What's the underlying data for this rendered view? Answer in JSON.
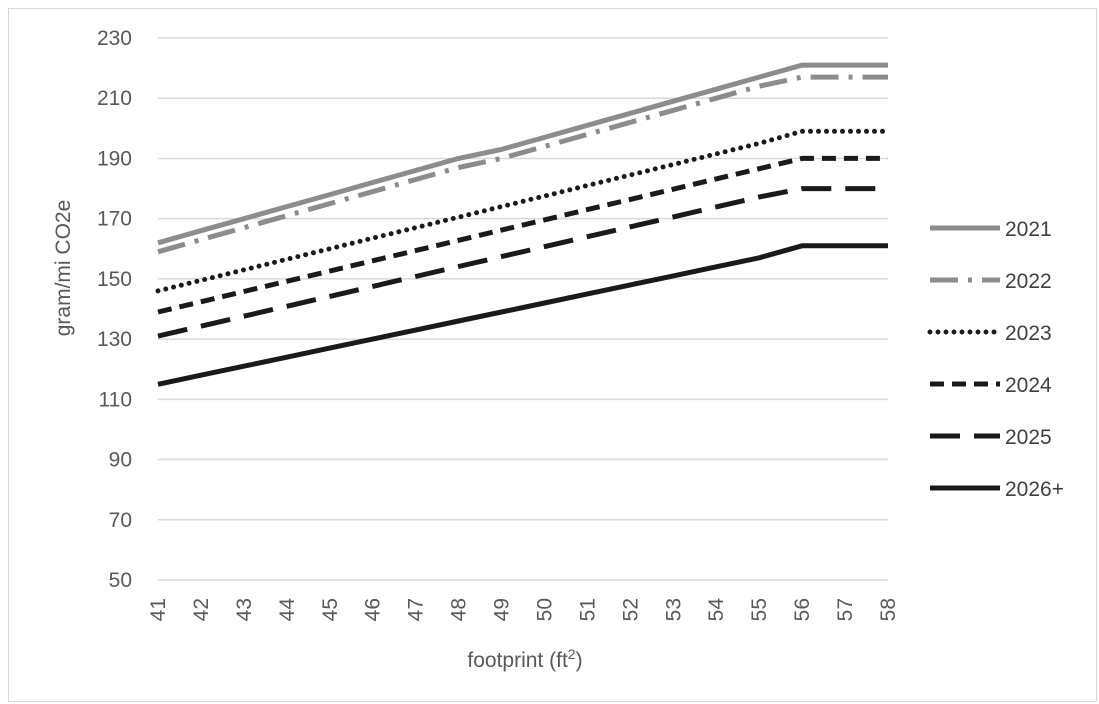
{
  "chart_data": {
    "type": "line",
    "x": [
      41,
      42,
      43,
      44,
      45,
      46,
      47,
      48,
      49,
      50,
      51,
      52,
      53,
      54,
      55,
      56,
      57,
      58
    ],
    "x_ticks": [
      "41",
      "42",
      "43",
      "44",
      "45",
      "46",
      "47",
      "48",
      "49",
      "50",
      "51",
      "52",
      "53",
      "54",
      "55",
      "56",
      "57",
      "58"
    ],
    "y_ticks": [
      "230",
      "210",
      "190",
      "170",
      "150",
      "130",
      "110",
      "90",
      "70",
      "50"
    ],
    "ylim": [
      50,
      230
    ],
    "xlabel": "footprint (ft",
    "xlabel_sup": "2",
    "xlabel_close": ")",
    "ylabel": "gram/mi CO2e",
    "grid": "horizontal",
    "legend_position": "right",
    "series": [
      {
        "name": "2021",
        "color": "#8c8c8c",
        "style": "solid",
        "values": [
          162,
          166,
          170,
          174,
          178,
          182,
          186,
          190,
          193,
          197,
          201,
          205,
          209,
          213,
          217,
          221,
          221,
          221
        ]
      },
      {
        "name": "2022",
        "color": "#8c8c8c",
        "style": "dash-dot",
        "values": [
          159,
          163,
          167,
          171,
          175,
          179,
          183,
          187,
          190,
          194,
          198,
          202,
          206,
          210,
          214,
          217,
          217,
          217
        ]
      },
      {
        "name": "2023",
        "color": "#1a1a1a",
        "style": "dotted",
        "values": [
          146,
          149.5,
          153,
          156.5,
          160,
          163.5,
          167,
          170.5,
          174,
          177.5,
          181,
          184.5,
          188,
          191.5,
          195,
          199,
          199,
          199
        ]
      },
      {
        "name": "2024",
        "color": "#1a1a1a",
        "style": "dashed",
        "values": [
          139,
          142.4,
          145.8,
          149.2,
          152.6,
          156,
          159.4,
          162.8,
          166.2,
          169.6,
          173,
          176.4,
          179.8,
          183.2,
          186.6,
          190,
          190,
          190
        ]
      },
      {
        "name": "2025",
        "color": "#1a1a1a",
        "style": "long-dash",
        "values": [
          131,
          134.3,
          137.6,
          140.9,
          144.2,
          147.5,
          150.8,
          154.1,
          157.4,
          160.7,
          164,
          167.3,
          170.6,
          173.9,
          177.2,
          180,
          180,
          180
        ]
      },
      {
        "name": "2026+",
        "color": "#1a1a1a",
        "style": "solid",
        "values": [
          115,
          118,
          121,
          124,
          127,
          130,
          133,
          136,
          139,
          142,
          145,
          148,
          151,
          154,
          157,
          161,
          161,
          161
        ]
      }
    ]
  }
}
